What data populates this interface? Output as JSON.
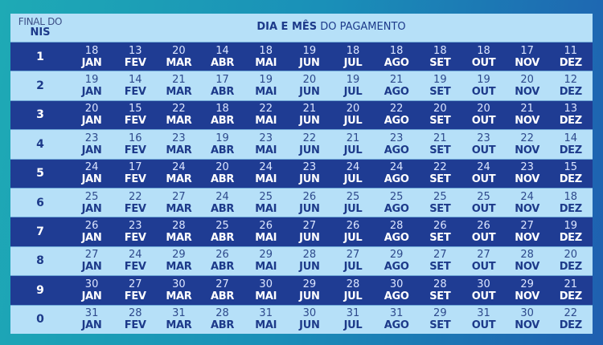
{
  "header": {
    "nis_label_line1": "FINAL DO",
    "nis_label_line2": "NIS",
    "title_bold": "DIA E MÊS",
    "title_regular": " DO PAGAMENTO"
  },
  "months": [
    "JAN",
    "FEV",
    "MAR",
    "ABR",
    "MAI",
    "JUN",
    "JUL",
    "AGO",
    "SET",
    "OUT",
    "NOV",
    "DEZ"
  ],
  "rows": [
    {
      "nis": "1",
      "days": [
        "18",
        "13",
        "20",
        "14",
        "18",
        "19",
        "18",
        "18",
        "18",
        "18",
        "17",
        "11"
      ]
    },
    {
      "nis": "2",
      "days": [
        "19",
        "14",
        "21",
        "17",
        "19",
        "20",
        "19",
        "21",
        "19",
        "19",
        "20",
        "12"
      ]
    },
    {
      "nis": "3",
      "days": [
        "20",
        "15",
        "22",
        "18",
        "22",
        "21",
        "20",
        "22",
        "20",
        "20",
        "21",
        "13"
      ]
    },
    {
      "nis": "4",
      "days": [
        "23",
        "16",
        "23",
        "19",
        "23",
        "22",
        "21",
        "23",
        "21",
        "23",
        "22",
        "14"
      ]
    },
    {
      "nis": "5",
      "days": [
        "24",
        "17",
        "24",
        "20",
        "24",
        "23",
        "24",
        "24",
        "22",
        "24",
        "23",
        "15"
      ]
    },
    {
      "nis": "6",
      "days": [
        "25",
        "22",
        "27",
        "24",
        "25",
        "26",
        "25",
        "25",
        "25",
        "25",
        "24",
        "18"
      ]
    },
    {
      "nis": "7",
      "days": [
        "26",
        "23",
        "28",
        "25",
        "26",
        "27",
        "26",
        "28",
        "26",
        "26",
        "27",
        "19"
      ]
    },
    {
      "nis": "8",
      "days": [
        "27",
        "24",
        "29",
        "26",
        "29",
        "28",
        "27",
        "29",
        "27",
        "27",
        "28",
        "20"
      ]
    },
    {
      "nis": "9",
      "days": [
        "30",
        "27",
        "30",
        "27",
        "30",
        "29",
        "28",
        "30",
        "28",
        "30",
        "29",
        "21"
      ]
    },
    {
      "nis": "0",
      "days": [
        "31",
        "28",
        "31",
        "28",
        "31",
        "30",
        "31",
        "31",
        "29",
        "31",
        "30",
        "22"
      ]
    }
  ],
  "colors": {
    "dark_row": "#1f3c93",
    "light_row": "#b6e0f8",
    "text_dark": "#1d3a8a"
  }
}
